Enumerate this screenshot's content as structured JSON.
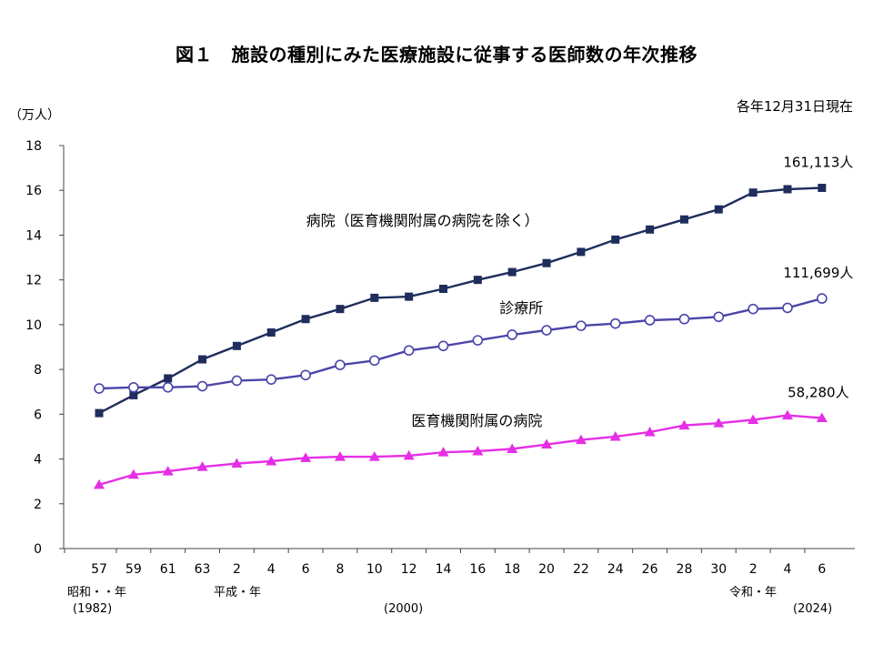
{
  "title": "図１　施設の種別にみた医療施設に従事する医師数の年次推移",
  "unit_label": "（万人）",
  "as_of": "各年12月31日現在",
  "era_labels": {
    "showa": "昭和・・年",
    "heisei": "平成・年",
    "reiwa": "令和・年"
  },
  "year_labels": {
    "start": "(1982)",
    "mid": "(2000)",
    "end": "(2024)"
  },
  "colors": {
    "hospital": "#1f2d5c",
    "clinic": "#4b45a8",
    "university": "#e62ee6",
    "axis": "#444444"
  },
  "chart_data": {
    "type": "line",
    "title": "図１　施設の種別にみた医療施設に従事する医師数の年次推移",
    "ylabel": "（万人）",
    "ylim": [
      0,
      18
    ],
    "yticks": [
      0,
      2,
      4,
      6,
      8,
      10,
      12,
      14,
      16,
      18
    ],
    "categories": [
      "57",
      "59",
      "61",
      "63",
      "2",
      "4",
      "6",
      "8",
      "10",
      "12",
      "14",
      "16",
      "18",
      "20",
      "22",
      "24",
      "26",
      "28",
      "30",
      "2",
      "4",
      "6"
    ],
    "series": [
      {
        "key": "hospital",
        "name": "病院（医育機関附属の病院を除く）",
        "marker": "square",
        "values": [
          6.05,
          6.85,
          7.6,
          8.45,
          9.05,
          9.65,
          10.25,
          10.7,
          11.2,
          11.25,
          11.6,
          12.0,
          12.35,
          12.75,
          13.25,
          13.8,
          14.25,
          14.7,
          15.15,
          15.9,
          16.05,
          16.11
        ],
        "end_label": "161,113人"
      },
      {
        "key": "clinic",
        "name": "診療所",
        "marker": "circle",
        "values": [
          7.15,
          7.2,
          7.2,
          7.25,
          7.5,
          7.55,
          7.75,
          8.2,
          8.4,
          8.85,
          9.05,
          9.3,
          9.55,
          9.75,
          9.95,
          10.05,
          10.2,
          10.25,
          10.35,
          10.7,
          10.75,
          11.17
        ],
        "end_label": "111,699人"
      },
      {
        "key": "university",
        "name": "医育機関附属の病院",
        "marker": "triangle",
        "values": [
          2.85,
          3.3,
          3.45,
          3.65,
          3.8,
          3.9,
          4.05,
          4.1,
          4.1,
          4.15,
          4.3,
          4.35,
          4.45,
          4.65,
          4.85,
          5.0,
          5.2,
          5.5,
          5.6,
          5.75,
          5.95,
          5.83
        ],
        "end_label": "58,280人"
      }
    ]
  }
}
